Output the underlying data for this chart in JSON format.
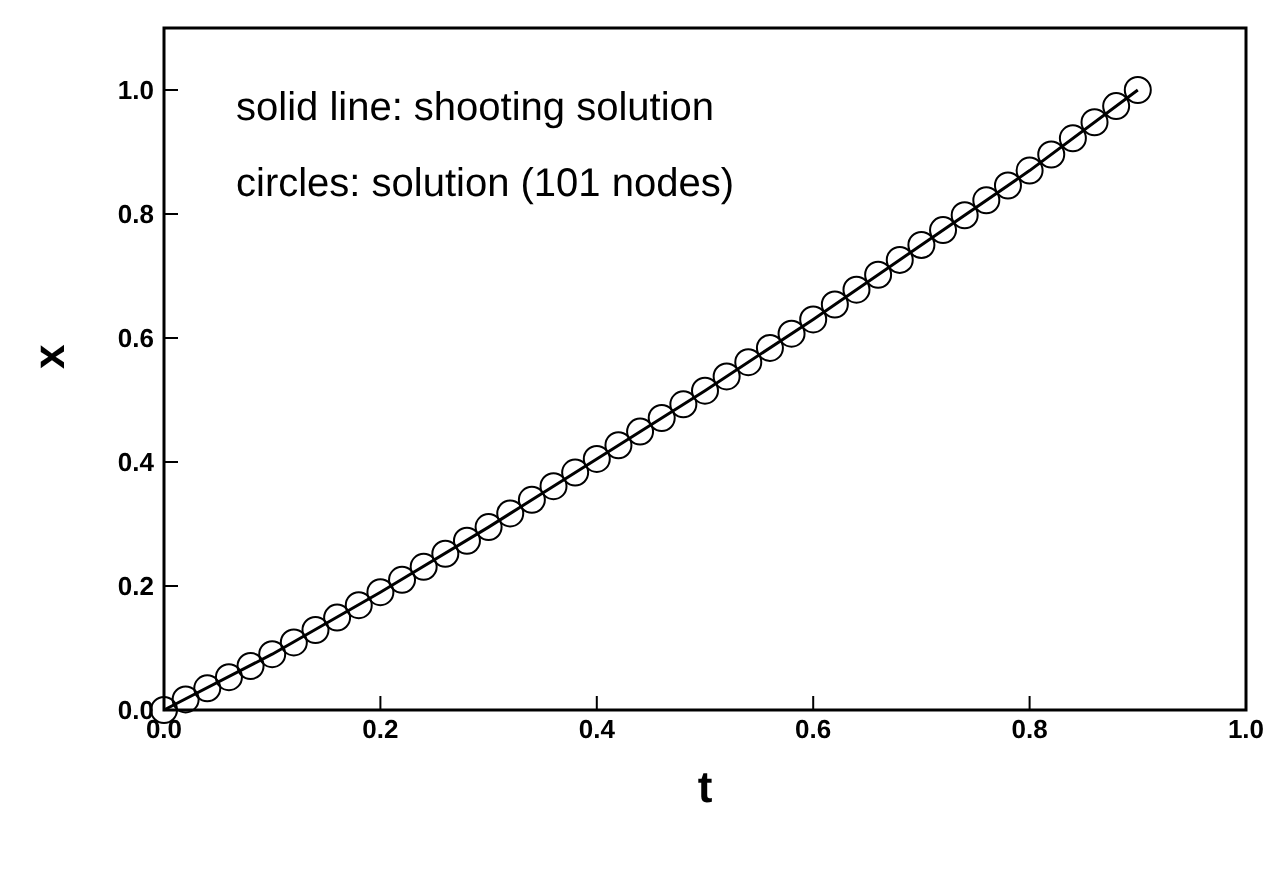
{
  "chart_data": {
    "type": "line",
    "xlabel": "t",
    "ylabel": "x",
    "annotations": [
      "solid line: shooting solution",
      "circles: solution (101 nodes)"
    ],
    "xlim": [
      0,
      1.0
    ],
    "xticks": [
      {
        "value": 0,
        "label": "0.0"
      },
      0.2,
      0.4,
      0.6,
      0.8,
      {
        "value": 1,
        "label": "1.0"
      }
    ],
    "ylim": [
      0,
      1.1
    ],
    "yticks": [
      {
        "value": 0,
        "label": "0.0"
      },
      0.2,
      0.4,
      0.6,
      0.8,
      {
        "value": 1,
        "label": "1.0"
      }
    ],
    "grid": false,
    "series": [
      {
        "color": "#000000",
        "marker": "none",
        "line_style": "solid",
        "x": [
          0,
          0.1,
          0.2,
          0.3,
          0.4,
          0.5,
          0.6,
          0.7,
          0.8,
          0.9
        ],
        "values": [
          0,
          0.09,
          0.19,
          0.295,
          0.405,
          0.515,
          0.63,
          0.75,
          0.87,
          1.0
        ]
      },
      {
        "type": "scatter",
        "color": "#000000",
        "marker": "circle",
        "x": [
          0,
          0.02,
          0.04,
          0.06,
          0.08,
          0.1,
          0.12,
          0.14,
          0.16,
          0.18,
          0.2,
          0.22,
          0.24,
          0.26,
          0.28,
          0.3,
          0.32,
          0.34,
          0.36,
          0.38,
          0.4,
          0.42,
          0.44,
          0.46,
          0.48,
          0.5,
          0.52,
          0.54,
          0.56,
          0.58,
          0.6,
          0.62,
          0.64,
          0.66,
          0.68,
          0.7,
          0.72,
          0.74,
          0.76,
          0.78,
          0.8,
          0.82,
          0.84,
          0.86,
          0.88,
          0.9
        ],
        "values": [
          0,
          0.017,
          0.035,
          0.053,
          0.071,
          0.09,
          0.109,
          0.129,
          0.149,
          0.169,
          0.19,
          0.21,
          0.231,
          0.252,
          0.273,
          0.295,
          0.317,
          0.339,
          0.361,
          0.383,
          0.405,
          0.427,
          0.449,
          0.471,
          0.493,
          0.515,
          0.538,
          0.561,
          0.584,
          0.607,
          0.63,
          0.654,
          0.678,
          0.702,
          0.726,
          0.75,
          0.774,
          0.798,
          0.822,
          0.846,
          0.87,
          0.896,
          0.922,
          0.948,
          0.974,
          1.0
        ]
      }
    ]
  }
}
